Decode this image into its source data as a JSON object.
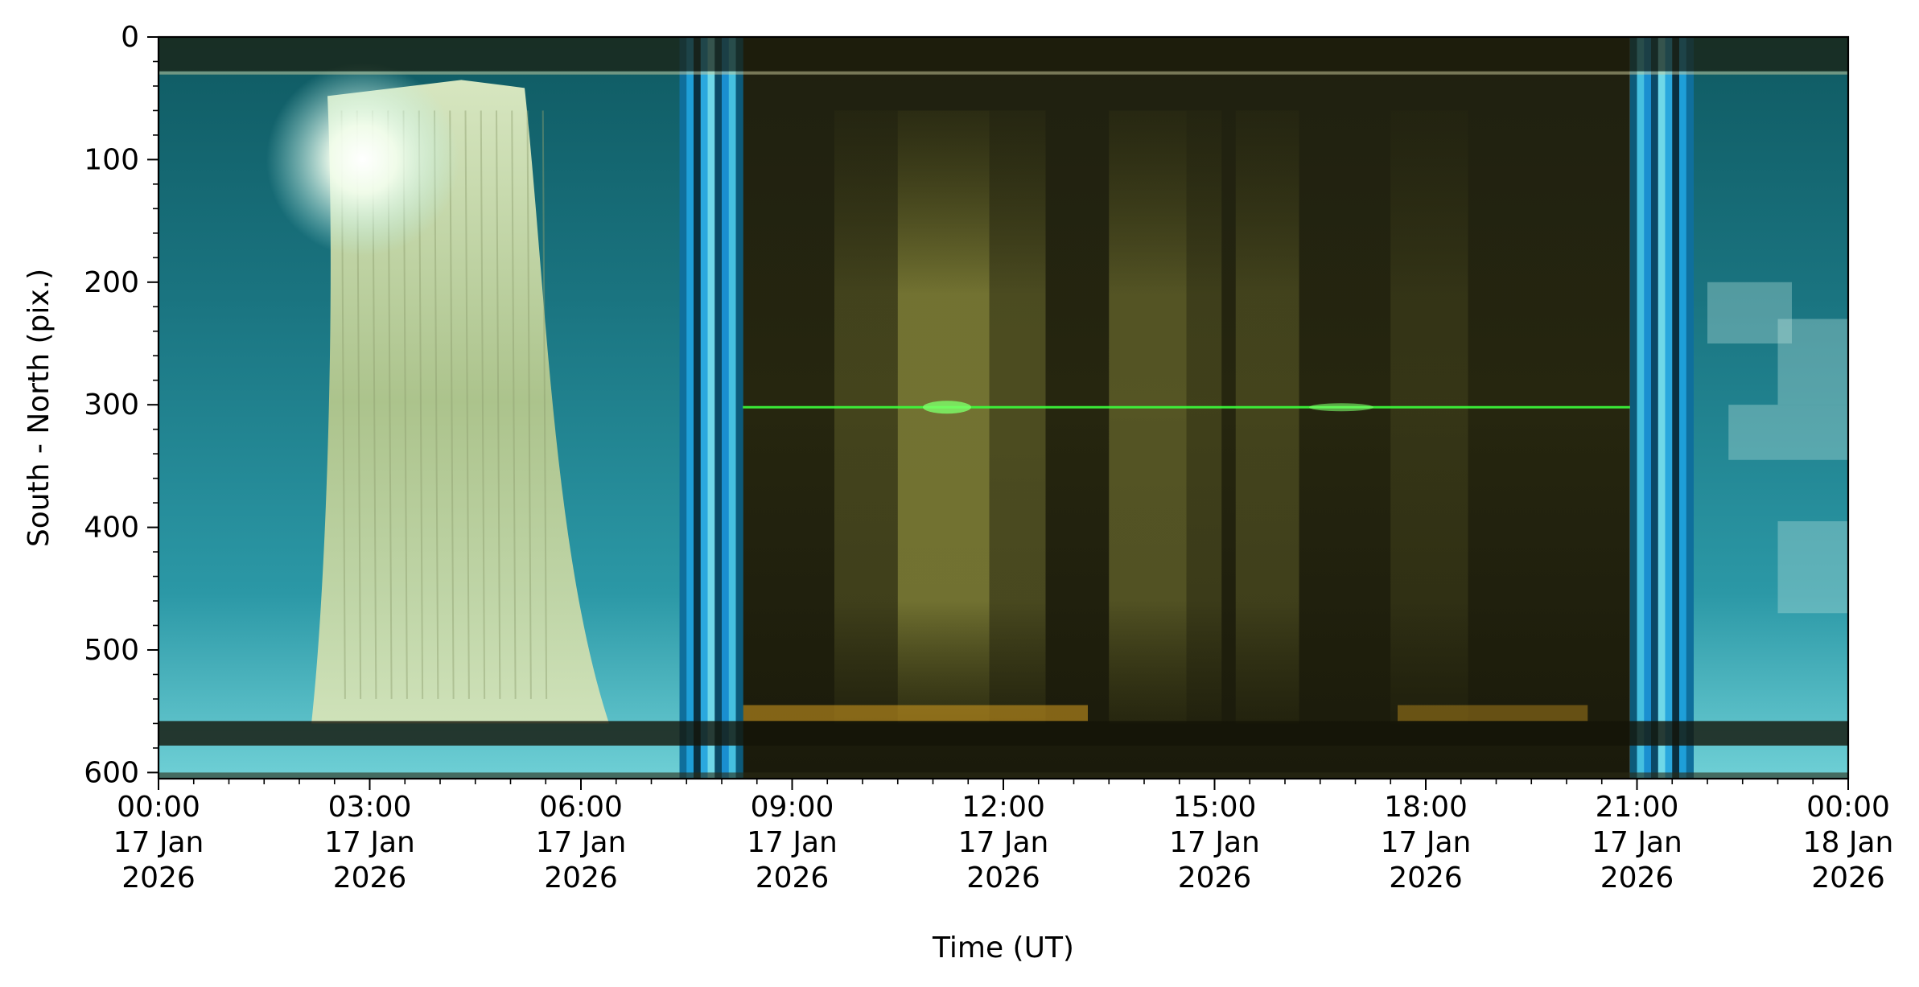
{
  "chart_data": {
    "type": "heatmap",
    "title": "",
    "xlabel": "Time (UT)",
    "ylabel": "South - North (pix.)",
    "x_ticks": [
      {
        "hours": 0,
        "time": "00:00",
        "date": "17 Jan",
        "year": "2026"
      },
      {
        "hours": 3,
        "time": "03:00",
        "date": "17 Jan",
        "year": "2026"
      },
      {
        "hours": 6,
        "time": "06:00",
        "date": "17 Jan",
        "year": "2026"
      },
      {
        "hours": 9,
        "time": "09:00",
        "date": "17 Jan",
        "year": "2026"
      },
      {
        "hours": 12,
        "time": "12:00",
        "date": "17 Jan",
        "year": "2026"
      },
      {
        "hours": 15,
        "time": "15:00",
        "date": "17 Jan",
        "year": "2026"
      },
      {
        "hours": 18,
        "time": "18:00",
        "date": "17 Jan",
        "year": "2026"
      },
      {
        "hours": 21,
        "time": "21:00",
        "date": "17 Jan",
        "year": "2026"
      },
      {
        "hours": 24,
        "time": "00:00",
        "date": "18 Jan",
        "year": "2026"
      }
    ],
    "xlim_hours": [
      0,
      24
    ],
    "y_ticks": [
      0,
      100,
      200,
      300,
      400,
      500,
      600
    ],
    "ylim": [
      0,
      605
    ],
    "y_inverted": true,
    "grid": false,
    "legend": "none",
    "colors": {
      "daylight_sky": "#1e7f88",
      "bright_sky": "#6fd0d6",
      "cloud": "#c8d7a4",
      "twilight_blue": "#1a8fd0",
      "night": "#16150a",
      "moonlit_cloud": "#8a8a3c",
      "aurora_green": "#3cff3c",
      "horizon_glow": "#d8a020"
    },
    "segments": [
      {
        "name": "day-morning",
        "start": 0,
        "end": 7.4,
        "kind": "day"
      },
      {
        "name": "dusk-twilight",
        "start": 7.4,
        "end": 8.3,
        "kind": "twilight"
      },
      {
        "name": "night",
        "start": 8.3,
        "end": 20.9,
        "kind": "night"
      },
      {
        "name": "dawn-twilight",
        "start": 20.9,
        "end": 21.8,
        "kind": "twilight"
      },
      {
        "name": "day-evening",
        "start": 21.8,
        "end": 24,
        "kind": "day"
      }
    ],
    "features": [
      {
        "name": "cloud-band",
        "start": 2.4,
        "end": 6.4,
        "y_top": 35,
        "y_bottom": 560
      },
      {
        "name": "green-line",
        "y": 302,
        "start": 8.3,
        "end": 20.9
      },
      {
        "name": "horizon-band",
        "y_top": 558,
        "y_bottom": 578
      }
    ]
  }
}
